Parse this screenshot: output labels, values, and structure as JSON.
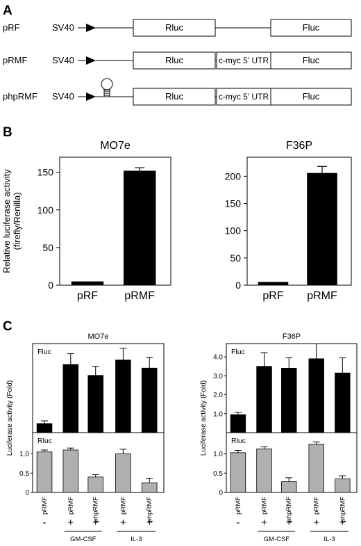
{
  "panels": {
    "a": "A",
    "b": "B",
    "c": "C"
  },
  "constructs": [
    {
      "name": "pRF",
      "promoter": "SV40",
      "boxes": [
        "Rluc",
        "Fluc"
      ],
      "hairpin": false
    },
    {
      "name": "pRMF",
      "promoter": "SV40",
      "boxes": [
        "Rluc",
        "c-myc 5' UTR",
        "Fluc"
      ],
      "hairpin": false
    },
    {
      "name": "phpRMF",
      "promoter": "SV40",
      "boxes": [
        "Rluc",
        "c-myc 5' UTR",
        "Fluc"
      ],
      "hairpin": true
    }
  ],
  "chart_data": [
    {
      "id": "b-mo7e",
      "type": "bar",
      "title": "MO7e",
      "ylabel": "Relative luciferase activity\n(firefly/Renilla)",
      "categories": [
        "pRF",
        "pRMF"
      ],
      "values": [
        5,
        152
      ],
      "errors": [
        0,
        4
      ],
      "ylim": [
        0,
        170
      ],
      "yticks": [
        0,
        50,
        100,
        150
      ],
      "ytick_labels": [
        "0",
        "50",
        "100",
        "150"
      ],
      "color": "#000000"
    },
    {
      "id": "b-f36p",
      "type": "bar",
      "title": "F36P",
      "ylabel": "",
      "categories": [
        "pRF",
        "pRMF"
      ],
      "values": [
        6,
        206
      ],
      "errors": [
        0,
        12
      ],
      "ylim": [
        0,
        235
      ],
      "yticks": [
        0,
        50,
        100,
        150,
        200
      ],
      "ytick_labels": [
        "0",
        "50",
        "100",
        "150",
        "200"
      ],
      "color": "#000000"
    },
    {
      "id": "c-mo7e-fluc",
      "type": "bar",
      "title": "MO7e",
      "inset_label": "Fluc",
      "values": [
        1.0,
        7.5,
        6.3,
        8.0,
        7.1
      ],
      "errors": [
        0.3,
        1.2,
        1.0,
        1.3,
        1.2
      ],
      "ylim": [
        0,
        9.8
      ],
      "yticks": [],
      "ytick_labels": [],
      "color": "#000000"
    },
    {
      "id": "c-mo7e-rluc",
      "type": "bar",
      "inset_label": "Rluc",
      "values": [
        1.05,
        1.1,
        0.4,
        1.0,
        0.25
      ],
      "errors": [
        0.05,
        0.05,
        0.06,
        0.12,
        0.12
      ],
      "ylim": [
        0,
        1.55
      ],
      "yticks": [
        0,
        0.5,
        1.0
      ],
      "ytick_labels": [
        "0",
        "0.5",
        "1.0"
      ],
      "color": "#b0b0b0"
    },
    {
      "id": "c-f36p-fluc",
      "type": "bar",
      "title": "F36P",
      "inset_label": "Fluc",
      "values": [
        0.95,
        3.5,
        3.4,
        3.9,
        3.15
      ],
      "errors": [
        0.12,
        0.72,
        0.55,
        0.8,
        0.8
      ],
      "ylim": [
        0,
        4.7
      ],
      "yticks": [
        1.0,
        2.0,
        3.0,
        4.0
      ],
      "ytick_labels": [
        "1.0",
        "2.0",
        "3.0",
        "4.0"
      ],
      "color": "#000000"
    },
    {
      "id": "c-f36p-rluc",
      "type": "bar",
      "inset_label": "Rluc",
      "values": [
        1.03,
        1.13,
        0.28,
        1.25,
        0.35
      ],
      "errors": [
        0.06,
        0.05,
        0.1,
        0.06,
        0.08
      ],
      "ylim": [
        0,
        1.55
      ],
      "yticks": [
        0,
        0.5,
        1.0
      ],
      "ytick_labels": [
        "0",
        "0.5",
        "1.0"
      ],
      "color": "#b0b0b0"
    }
  ],
  "panel_c": {
    "ylabel": "Luciferase activity (Fold)",
    "categories": [
      "pRMF",
      "pRMF",
      "phpRMF",
      "pRMF",
      "phpRMF"
    ],
    "signs": [
      "-",
      "+",
      "+",
      "+",
      "+"
    ],
    "groups": [
      "GM-CSF",
      "IL-3"
    ]
  }
}
